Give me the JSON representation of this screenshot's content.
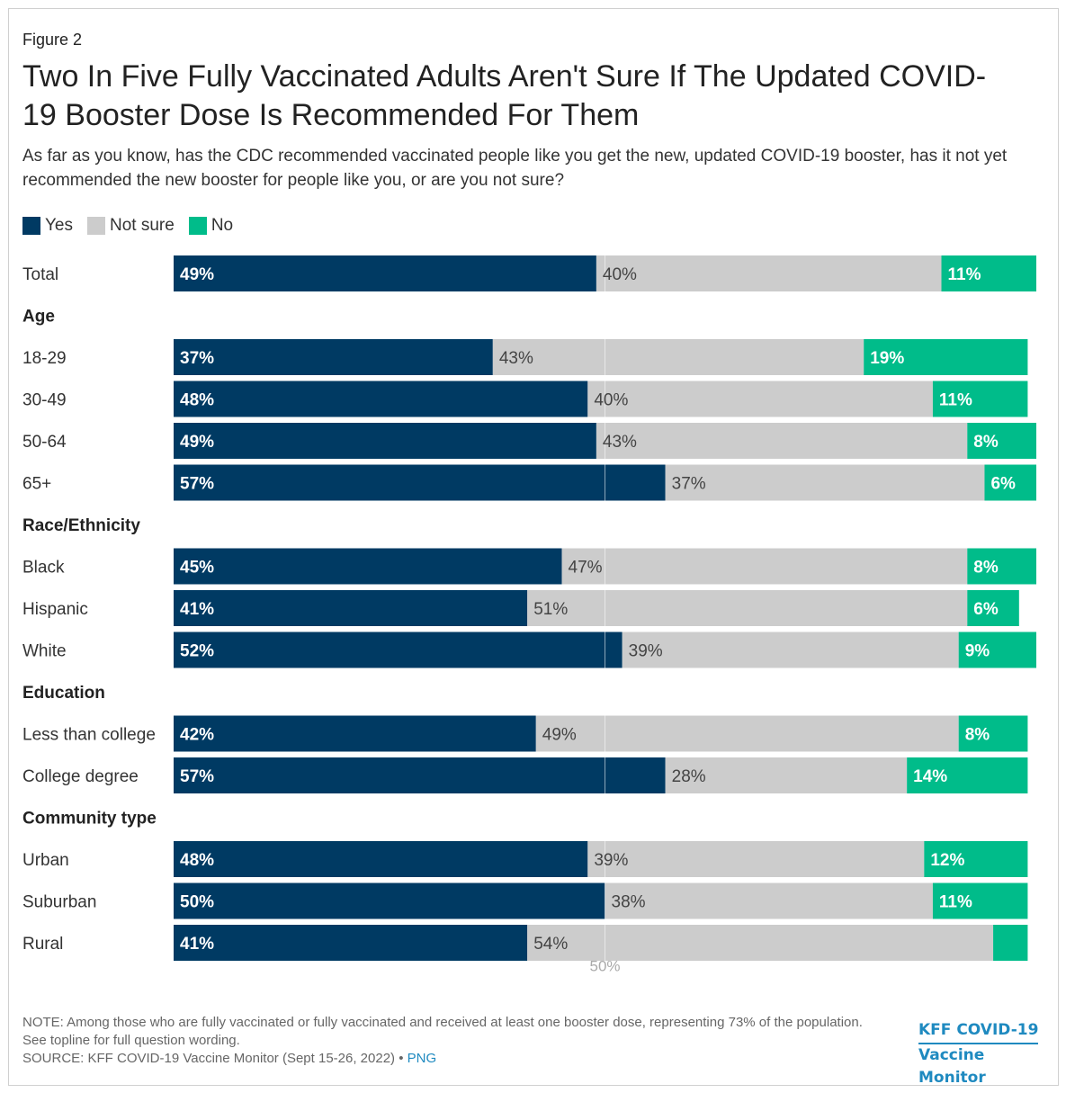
{
  "figure_label": "Figure 2",
  "chart_data": {
    "type": "bar",
    "orientation": "horizontal",
    "stacked": true,
    "title": "Two In Five Fully Vaccinated Adults Aren't Sure If The Updated COVID-19 Booster Dose Is Recommended For Them",
    "subtitle": "As far as you know, has the CDC recommended vaccinated people like you get the new, updated COVID-19 booster, has it not yet recommended the new booster for people like you, or are you not sure?",
    "legend_position": "top-left",
    "series": [
      {
        "name": "Yes",
        "color": "#003a63"
      },
      {
        "name": "Not sure",
        "color": "#cccccc"
      },
      {
        "name": "No",
        "color": "#00bc8a"
      }
    ],
    "groups": [
      {
        "label": "",
        "rows": [
          {
            "label": "Total",
            "values": [
              49,
              40,
              11
            ],
            "labels": [
              "49%",
              "40%",
              "11%"
            ]
          }
        ]
      },
      {
        "label": "Age",
        "rows": [
          {
            "label": "18-29",
            "values": [
              37,
              43,
              19
            ],
            "labels": [
              "37%",
              "43%",
              "19%"
            ]
          },
          {
            "label": "30-49",
            "values": [
              48,
              40,
              11
            ],
            "labels": [
              "48%",
              "40%",
              "11%"
            ]
          },
          {
            "label": "50-64",
            "values": [
              49,
              43,
              8
            ],
            "labels": [
              "49%",
              "43%",
              "8%"
            ]
          },
          {
            "label": "65+",
            "values": [
              57,
              37,
              6
            ],
            "labels": [
              "57%",
              "37%",
              "6%"
            ]
          }
        ]
      },
      {
        "label": "Race/Ethnicity",
        "rows": [
          {
            "label": "Black",
            "values": [
              45,
              47,
              8
            ],
            "labels": [
              "45%",
              "47%",
              "8%"
            ]
          },
          {
            "label": "Hispanic",
            "values": [
              41,
              51,
              6
            ],
            "labels": [
              "41%",
              "51%",
              "6%"
            ]
          },
          {
            "label": "White",
            "values": [
              52,
              39,
              9
            ],
            "labels": [
              "52%",
              "39%",
              "9%"
            ]
          }
        ]
      },
      {
        "label": "Education",
        "rows": [
          {
            "label": "Less than college",
            "values": [
              42,
              49,
              8
            ],
            "labels": [
              "42%",
              "49%",
              "8%"
            ]
          },
          {
            "label": "College degree",
            "values": [
              57,
              28,
              14
            ],
            "labels": [
              "57%",
              "28%",
              "14%"
            ]
          }
        ]
      },
      {
        "label": "Community type",
        "rows": [
          {
            "label": "Urban",
            "values": [
              48,
              39,
              12
            ],
            "labels": [
              "48%",
              "39%",
              "12%"
            ]
          },
          {
            "label": "Suburban",
            "values": [
              50,
              38,
              11
            ],
            "labels": [
              "50%",
              "38%",
              "11%"
            ]
          },
          {
            "label": "Rural",
            "values": [
              41,
              54,
              4
            ],
            "labels": [
              "41%",
              "54%",
              ""
            ]
          }
        ]
      }
    ],
    "reference_line": {
      "value": 50,
      "label": "50%"
    },
    "xlim": [
      0,
      100
    ]
  },
  "footer": {
    "note": "NOTE: Among those who are fully vaccinated or fully vaccinated and received at least one booster dose, representing 73% of the population. See topline for full question wording.",
    "source": "SOURCE: KFF COVID-19 Vaccine Monitor (Sept 15-26, 2022)",
    "separator": " • ",
    "png_label": "PNG"
  },
  "brand": {
    "line1": "KFF COVID-19",
    "line2": "Vaccine Monitor"
  }
}
